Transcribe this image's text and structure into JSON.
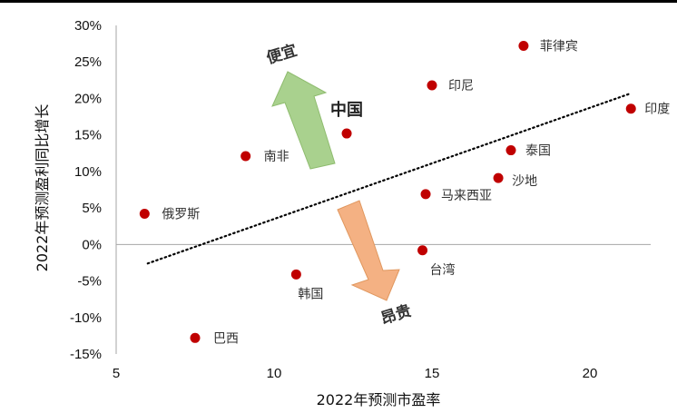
{
  "chart_data": {
    "type": "scatter",
    "xlabel": "2022年预测市盈率",
    "ylabel": "2022年预测盈利同比增长",
    "xlim": [
      5,
      22
    ],
    "ylim": [
      -15,
      30
    ],
    "xticks": [
      "5",
      "10",
      "15",
      "20"
    ],
    "yticks": [
      "30%",
      "25%",
      "20%",
      "15%",
      "10%",
      "5%",
      "0%",
      "-5%",
      "-10%",
      "-15%"
    ],
    "grid": false,
    "legend": "none",
    "points": [
      {
        "label": "菲律宾",
        "x": 17.9,
        "y": 27.2
      },
      {
        "label": "印尼",
        "x": 15.0,
        "y": 21.8
      },
      {
        "label": "印度",
        "x": 21.3,
        "y": 18.6
      },
      {
        "label": "中国",
        "x": 12.3,
        "y": 15.2
      },
      {
        "label": "南非",
        "x": 9.1,
        "y": 12.1
      },
      {
        "label": "泰国",
        "x": 17.5,
        "y": 12.9
      },
      {
        "label": "马来西亚",
        "x": 14.8,
        "y": 6.9
      },
      {
        "label": "沙地",
        "x": 17.1,
        "y": 9.1
      },
      {
        "label": "俄罗斯",
        "x": 5.9,
        "y": 4.2
      },
      {
        "label": "台湾",
        "x": 14.7,
        "y": -0.8
      },
      {
        "label": "韩国",
        "x": 10.7,
        "y": -4.1
      },
      {
        "label": "巴西",
        "x": 7.5,
        "y": -12.8
      }
    ],
    "trendline": {
      "x": [
        6.0,
        21.3
      ],
      "y": [
        -2.6,
        20.7
      ],
      "style": "dotted"
    },
    "annotations": {
      "cheap": "便宜",
      "expensive": "昂贵"
    },
    "colors": {
      "marker": "#c00000",
      "up_arrow": "#a9d18e",
      "down_arrow": "#f4b183",
      "axis": "#a6a6a6"
    }
  }
}
